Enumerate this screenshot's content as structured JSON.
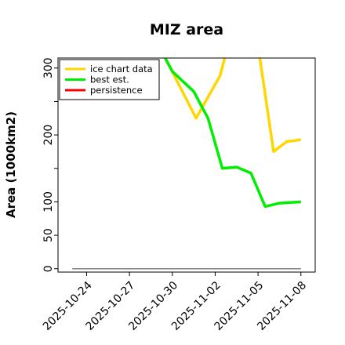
{
  "chart_data": {
    "type": "line",
    "title": "MIZ area",
    "xlabel": "",
    "ylabel": "Area (1000km2)",
    "x_type": "date",
    "xlim": [
      "2025-10-22",
      "2025-11-09"
    ],
    "ylim": [
      -5,
      315
    ],
    "x_ticks": [
      "2025-10-24",
      "2025-10-27",
      "2025-10-30",
      "2025-11-02",
      "2025-11-05",
      "2025-11-08"
    ],
    "y_ticks": [
      0,
      50,
      100,
      200,
      300
    ],
    "y_minor_ticks": [
      150,
      250
    ],
    "grid": false,
    "legend_position": "top-left",
    "series": [
      {
        "name": "ice chart data",
        "color": "#FFD700",
        "segments": [
          [
            [
              "2025-10-29 12:00",
              315
            ],
            [
              "2025-10-31 16:00",
              225
            ],
            [
              "2025-11-01 14:00",
              260
            ],
            [
              "2025-11-02 08:00",
              288
            ],
            [
              "2025-11-02 16:00",
              315
            ]
          ],
          [
            [
              "2025-11-05 03:00",
              315
            ],
            [
              "2025-11-06 02:00",
              175
            ],
            [
              "2025-11-07 00:00",
              190
            ],
            [
              "2025-11-08 00:00",
              193
            ]
          ]
        ]
      },
      {
        "name": "best est.",
        "color": "#00EE00",
        "segments": [
          [
            [
              "2025-10-29 12:00",
              315
            ],
            [
              "2025-10-30 00:00",
              295
            ],
            [
              "2025-10-31 12:00",
              265
            ],
            [
              "2025-11-01 12:00",
              225
            ],
            [
              "2025-11-02 12:00",
              150
            ],
            [
              "2025-11-03 12:00",
              152
            ],
            [
              "2025-11-04 12:00",
              143
            ],
            [
              "2025-11-05 12:00",
              93
            ],
            [
              "2025-11-06 12:00",
              98
            ],
            [
              "2025-11-08 00:00",
              100
            ]
          ]
        ]
      },
      {
        "name": "persistence",
        "color": "#FF0000",
        "segments": []
      },
      {
        "name": "",
        "color": "#808080",
        "segments": [
          [
            [
              "2025-10-23",
              0
            ],
            [
              "2025-11-08",
              0
            ]
          ]
        ]
      }
    ]
  }
}
